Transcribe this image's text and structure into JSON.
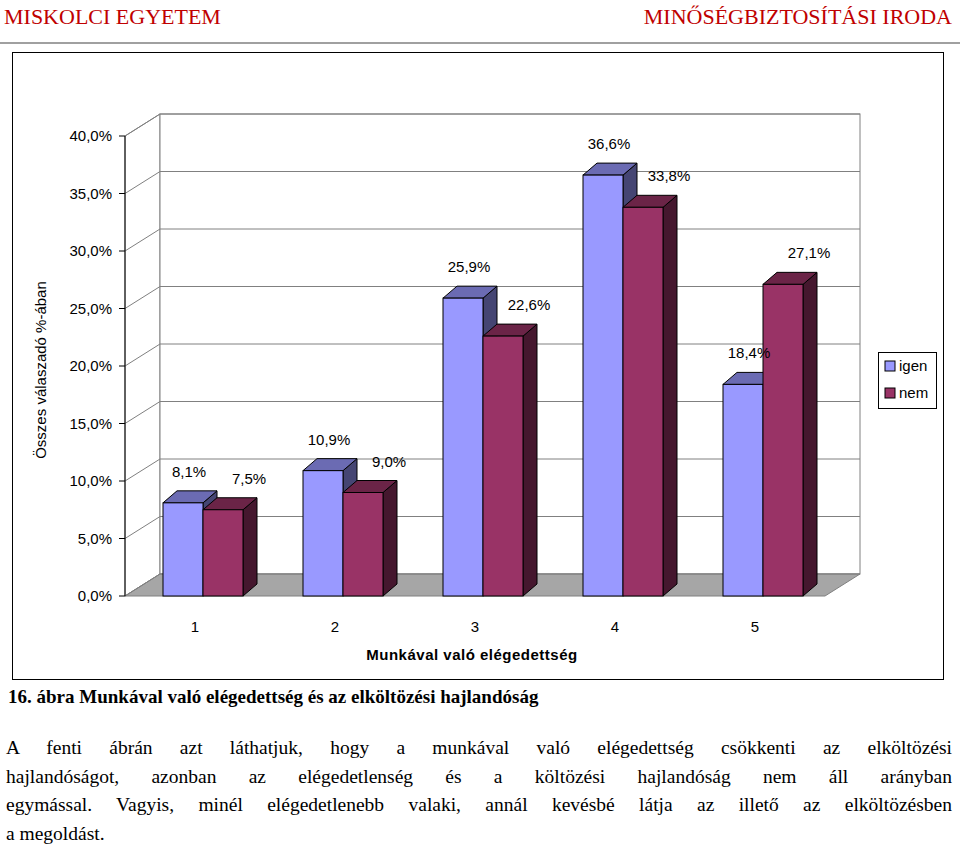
{
  "header": {
    "left": "MISKOLCI EGYETEM",
    "right": "MINŐSÉGBIZTOSÍTÁSI IRODA"
  },
  "chart_data": {
    "type": "bar",
    "x_label": "Munkával való elégedettség",
    "y_label": "Összes válaszadó %-ában",
    "categories": [
      "1",
      "2",
      "3",
      "4",
      "5"
    ],
    "series": [
      {
        "name": "igen",
        "color": "#9999ff",
        "values": [
          8.1,
          10.9,
          25.9,
          36.6,
          18.4
        ],
        "value_labels": [
          "8,1%",
          "10,9%",
          "25,9%",
          "36,6%",
          "18,4%"
        ]
      },
      {
        "name": "nem",
        "color": "#993366",
        "values": [
          7.5,
          9.0,
          22.6,
          33.8,
          27.1
        ],
        "value_labels": [
          "7,5%",
          "9,0%",
          "22,6%",
          "33,8%",
          "27,1%"
        ]
      }
    ],
    "ylim": [
      0,
      40
    ],
    "yticks": [
      {
        "value": 0,
        "label": "0,0%"
      },
      {
        "value": 5,
        "label": "5,0%"
      },
      {
        "value": 10,
        "label": "10,0%"
      },
      {
        "value": 15,
        "label": "15,0%"
      },
      {
        "value": 20,
        "label": "20,0%"
      },
      {
        "value": 25,
        "label": "25,0%"
      },
      {
        "value": 30,
        "label": "30,0%"
      },
      {
        "value": 35,
        "label": "35,0%"
      },
      {
        "value": 40,
        "label": "40,0%"
      }
    ],
    "grid": true,
    "legend": "right",
    "data_labels": true
  },
  "caption": "16. ábra Munkával való elégedettség és az elköltözési hajlandóság",
  "paragraph": [
    "A fenti ábrán azt láthatjuk, hogy a munkával való elégedettség csökkenti az elköltözési",
    "hajlandóságot, azonban az elégedetlenség és a költözési hajlandóság nem áll arányban",
    "egymással. Vagyis, minél elégedetlenebb valaki, annál kevésbé látja az illető az elköltözésben",
    "a megoldást."
  ]
}
